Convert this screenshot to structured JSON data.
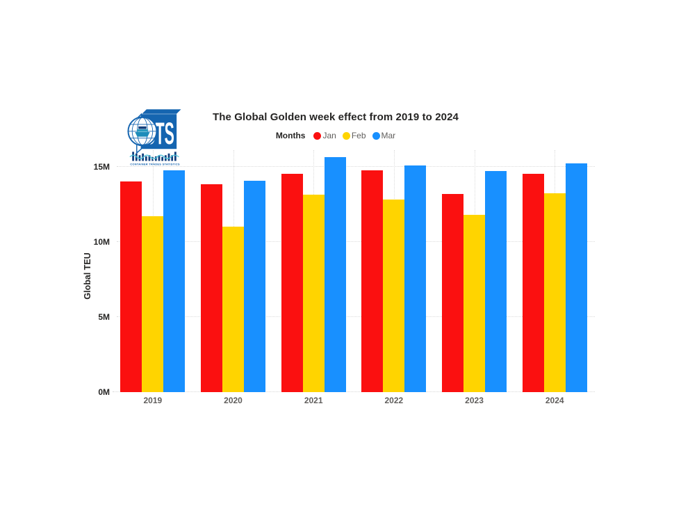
{
  "logo": {
    "acronym": "CTS",
    "subtitle": "CONTAINER TRADES STATISTICS",
    "colors": {
      "blue": "#1565b0",
      "navy": "#123f7d",
      "teal": "#4cc3d9"
    }
  },
  "chart": {
    "title": "The Global Golden week effect from 2019 to 2024",
    "legend_title": "Months",
    "y_axis_title": "Global TEU"
  },
  "chart_data": {
    "type": "bar",
    "title": "The Global Golden week effect from 2019 to 2024",
    "xlabel": "",
    "ylabel": "Global TEU",
    "unit": "million TEU",
    "categories": [
      "2019",
      "2020",
      "2021",
      "2022",
      "2023",
      "2024"
    ],
    "series": [
      {
        "name": "Jan",
        "color": "#FB1010",
        "values": [
          14.0,
          13.85,
          14.55,
          14.75,
          13.2,
          14.55
        ]
      },
      {
        "name": "Feb",
        "color": "#FFD400",
        "values": [
          11.7,
          11.0,
          13.15,
          12.8,
          11.8,
          13.25
        ]
      },
      {
        "name": "Mar",
        "color": "#1890FF",
        "values": [
          14.75,
          14.05,
          15.65,
          15.1,
          14.7,
          15.2
        ]
      }
    ],
    "ylim": [
      0,
      16.1
    ],
    "yticks": [
      "0M",
      "5M",
      "10M",
      "15M"
    ],
    "ytick_values": [
      0,
      5,
      10,
      15
    ],
    "legend_position": "top",
    "grid": "dotted"
  }
}
